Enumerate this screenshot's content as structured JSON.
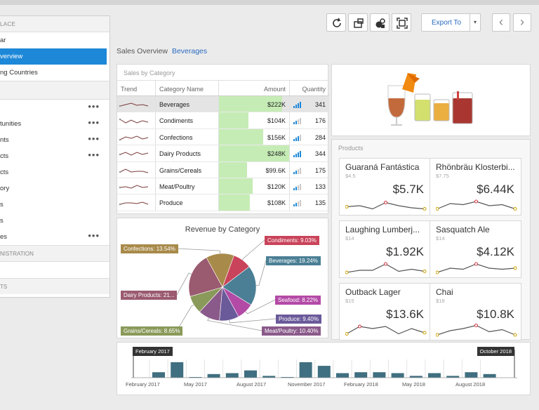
{
  "sidebar": {
    "header": "LACE",
    "items": [
      {
        "label": "ar"
      },
      {
        "label": "verview"
      },
      {
        "label": "ng Countries"
      }
    ],
    "tasks": [
      {
        "label": "tunities",
        "menu": "•••"
      },
      {
        "label": "nts",
        "menu": "•••"
      },
      {
        "label": "cts",
        "menu": "•••"
      },
      {
        "label": "cts",
        "menu": ""
      },
      {
        "label": "ory",
        "menu": ""
      },
      {
        "label": "s",
        "menu": ""
      },
      {
        "label": "s",
        "menu": ""
      },
      {
        "label": "es",
        "menu": "•••"
      }
    ],
    "top_menu": "•••",
    "section2": "NISTRATION",
    "section3": "TS"
  },
  "toolbar": {
    "export_label": "Export To",
    "caret": "▾",
    "prev": "‹",
    "next": "›"
  },
  "breadcrumb": {
    "root": "Sales Overview",
    "current": "Beverages"
  },
  "sales": {
    "title": "Sales by Category",
    "columns": {
      "trend": "Trend",
      "name": "Category Name",
      "amount": "Amount",
      "qty": "Quantity"
    },
    "rows": [
      {
        "name": "Beverages",
        "amount": "$222K",
        "qty": "341",
        "fill": 0.9
      },
      {
        "name": "Condiments",
        "amount": "$104K",
        "qty": "176",
        "fill": 0.42
      },
      {
        "name": "Confections",
        "amount": "$156K",
        "qty": "284",
        "fill": 0.63
      },
      {
        "name": "Dairy Products",
        "amount": "$248K",
        "qty": "344",
        "fill": 1.0
      },
      {
        "name": "Grains/Cereals",
        "amount": "$99.6K",
        "qty": "175",
        "fill": 0.4
      },
      {
        "name": "Meat/Poultry",
        "amount": "$120K",
        "qty": "133",
        "fill": 0.48
      },
      {
        "name": "Produce",
        "amount": "$108K",
        "qty": "135",
        "fill": 0.44
      }
    ]
  },
  "chart_data": {
    "type": "pie",
    "title": "Revenue by Category",
    "slices": [
      {
        "label": "Confections: 13.54%",
        "value": 13.54,
        "color": "#a88a4a"
      },
      {
        "label": "Condiments: 9.03%",
        "value": 9.03,
        "color": "#c9435a"
      },
      {
        "label": "Beverages: 19.24%",
        "value": 19.24,
        "color": "#4a7f95"
      },
      {
        "label": "Seafood: 8.22%",
        "value": 8.22,
        "color": "#b34aa6"
      },
      {
        "label": "Produce: 9.40%",
        "value": 9.4,
        "color": "#6a5a9a"
      },
      {
        "label": "Meat/Poultry: 10.40%",
        "value": 10.4,
        "color": "#8a5a8a"
      },
      {
        "label": "Grains/Cereals: 8.65%",
        "value": 8.65,
        "color": "#8a9a5a"
      },
      {
        "label": "Dairy Products: 21...",
        "value": 21.52,
        "color": "#9a5a70"
      }
    ]
  },
  "products": {
    "title": "Products",
    "cards": [
      {
        "name": "Guaraná Fantástica",
        "price": "$4.5",
        "value": "$5.7K"
      },
      {
        "name": "Rhönbräu Klosterbi...",
        "price": "$7.75",
        "value": "$6.44K"
      },
      {
        "name": "Laughing Lumberj...",
        "price": "$14",
        "value": "$1.92K"
      },
      {
        "name": "Sasquatch Ale",
        "price": "$14",
        "value": "$4.12K"
      },
      {
        "name": "Outback Lager",
        "price": "$15",
        "value": "$13.6K"
      },
      {
        "name": "Chai",
        "price": "$18",
        "value": "$10.8K"
      }
    ]
  },
  "timeline": {
    "start_tag": "February 2017",
    "end_tag": "October 2018",
    "axis": [
      "February 2017",
      "May 2017",
      "August 2017",
      "November 2017",
      "February 2018",
      "May 2018",
      "August 2018"
    ],
    "bars": [
      0.3,
      0.85,
      0,
      0.2,
      0.25,
      0.4,
      0.1,
      0,
      0.85,
      0.65,
      0.25,
      0.3,
      0.3,
      0.25,
      0.1,
      0.25,
      0.1,
      0.3,
      0.2
    ]
  }
}
